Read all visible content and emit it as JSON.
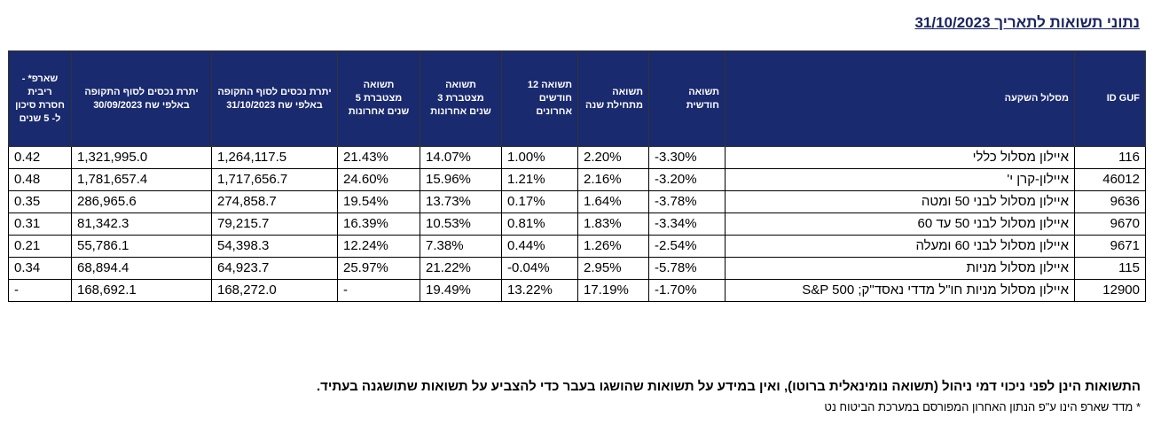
{
  "title": "נתוני תשואות לתאריך 31/10/2023",
  "headers": [
    "ID GUF",
    "מסלול השקעה",
    "תשואה חודשית",
    "תשואה מתחילת שנה",
    "תשואה 12 חודשים אחרונים",
    "תשואה מצטברת 3 שנים אחרונות",
    "תשואה מצטברת 5 שנים אחרונות",
    "יתרת נכסים לסוף התקופה באלפי שח 31/10/2023",
    "יתרת נכסים לסוף התקופה באלפי שח 30/09/2023",
    "שארפ* - ריבית חסרת סיכון ל- 5 שנים"
  ],
  "rows": [
    [
      "116",
      "איילון מסלול כללי",
      "-3.30%",
      "2.20%",
      "1.00%",
      "14.07%",
      "21.43%",
      "1,264,117.5",
      "1,321,995.0",
      "0.42"
    ],
    [
      "46012",
      "איילון-קרן י'",
      "-3.20%",
      "2.16%",
      "1.21%",
      "15.96%",
      "24.60%",
      "1,717,656.7",
      "1,781,657.4",
      "0.48"
    ],
    [
      "9636",
      "איילון מסלול לבני 50 ומטה",
      "-3.78%",
      "1.64%",
      "0.17%",
      "13.73%",
      "19.54%",
      "274,858.7",
      "286,965.6",
      "0.35"
    ],
    [
      "9670",
      "איילון מסלול לבני 50 עד 60",
      "-3.34%",
      "1.83%",
      "0.81%",
      "10.53%",
      "16.39%",
      "79,215.7",
      "81,342.3",
      "0.31"
    ],
    [
      "9671",
      "איילון מסלול לבני 60 ומעלה",
      "-2.54%",
      "1.26%",
      "0.44%",
      "7.38%",
      "12.24%",
      "54,398.3",
      "55,786.1",
      "0.21"
    ],
    [
      "115",
      "איילון מסלול מניות",
      "-5.78%",
      "2.95%",
      "-0.04%",
      "21.22%",
      "25.97%",
      "64,923.7",
      "68,894.4",
      "0.34"
    ],
    [
      "12900",
      "איילון מסלול מניות חו\"ל מדדי נאסד\"ק; S&P 500",
      "-1.70%",
      "17.19%",
      "13.22%",
      "19.49%",
      "-",
      "168,272.0",
      "168,692.1",
      "-"
    ]
  ],
  "footnote_main": "התשואות הינן לפני ניכוי דמי ניהול (תשואה נומינאלית ברוטו), ואין במידע על תשואות שהושגו בעבר כדי להצביע על תשואות שתושגנה בעתיד.",
  "footnote_star": "*   מדד שארפ הינו ע\"פ הנתון האחרון המפורסם במערכת הביטוח נט"
}
